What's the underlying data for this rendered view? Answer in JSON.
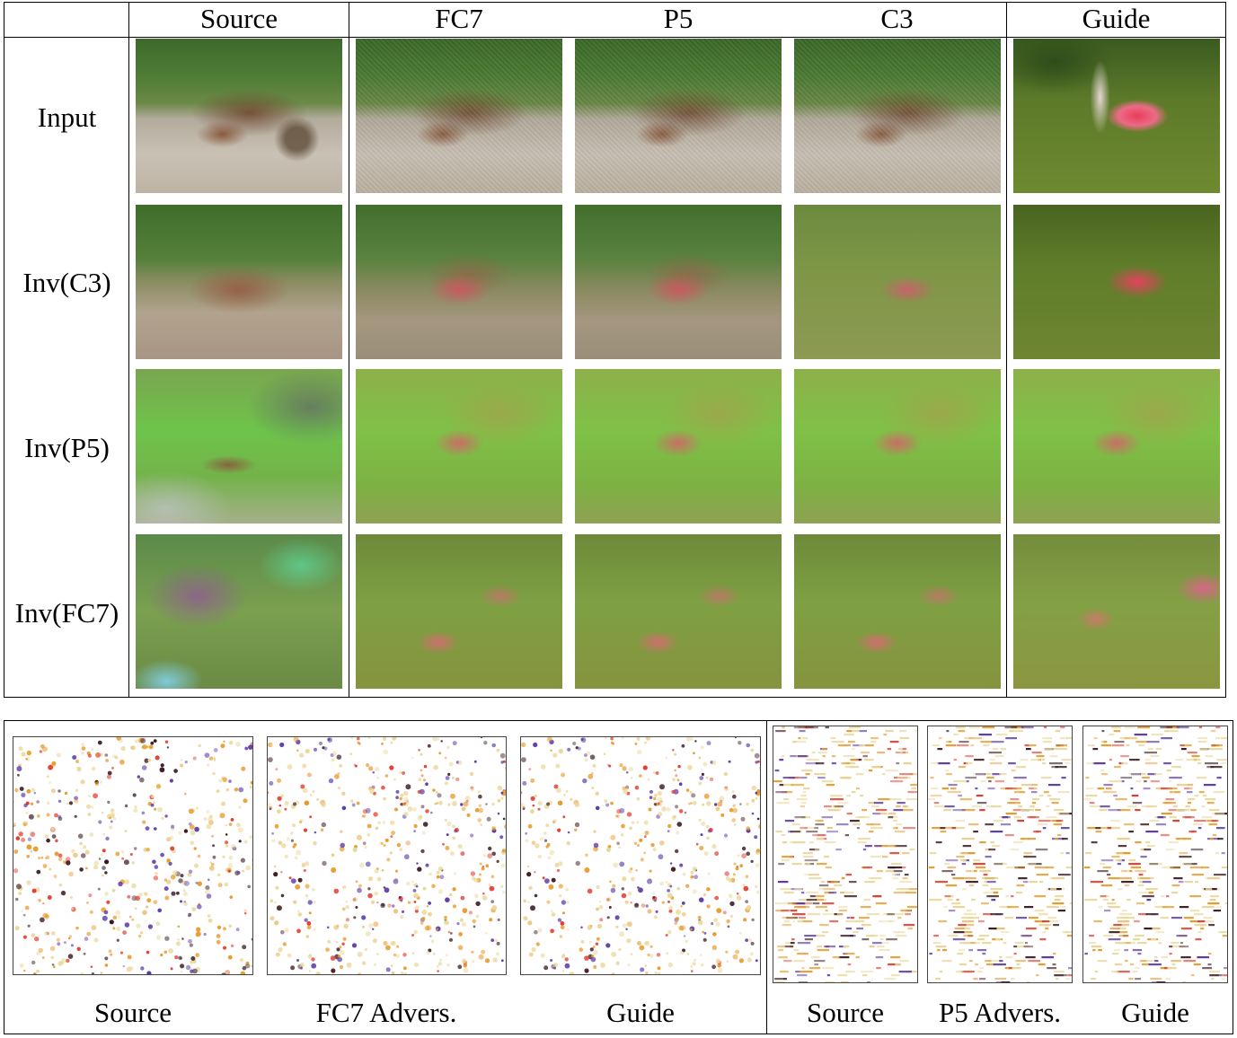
{
  "top": {
    "columns": [
      "Source",
      "FC7",
      "P5",
      "C3",
      "Guide"
    ],
    "rows": [
      "Input",
      "Inv(C3)",
      "Inv(P5)",
      "Inv(FC7)"
    ]
  },
  "bottom": {
    "captions": [
      "Source",
      "FC7 Advers.",
      "Guide",
      "Source",
      "P5 Advers.",
      "Guide"
    ]
  },
  "colors": {
    "heat_light": "#ead79a",
    "heat_orange": "#e89a2a",
    "heat_red": "#e23a2c",
    "heat_purple": "#5a3aa8",
    "heat_dark": "#3a1a20"
  }
}
